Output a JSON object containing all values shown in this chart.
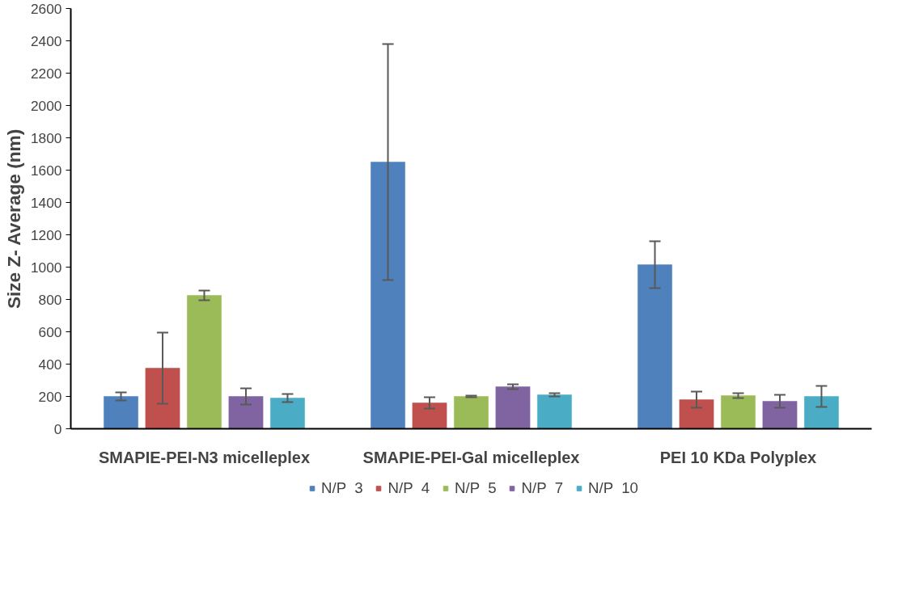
{
  "chart_data": {
    "type": "bar",
    "ylabel": "Size Z- Average (nm)",
    "categories": [
      "SMAPIE-PEI-N3 micelleplex",
      "SMAPIE-PEI-Gal micelleplex",
      "PEI 10 KDa Polyplex"
    ],
    "series": [
      {
        "name": "N/P  3",
        "color": "#4f81bd",
        "values": [
          200,
          1650,
          1015
        ],
        "errors": [
          25,
          730,
          145
        ]
      },
      {
        "name": "N/P  4",
        "color": "#c0504d",
        "values": [
          375,
          160,
          180
        ],
        "errors": [
          220,
          35,
          50
        ]
      },
      {
        "name": "N/P  5",
        "color": "#9bbb59",
        "values": [
          825,
          200,
          205
        ],
        "errors": [
          30,
          5,
          15
        ]
      },
      {
        "name": "N/P  7",
        "color": "#8064a2",
        "values": [
          200,
          260,
          170
        ],
        "errors": [
          50,
          15,
          40
        ]
      },
      {
        "name": "N/P  10",
        "color": "#4bacc6",
        "values": [
          190,
          210,
          200
        ],
        "errors": [
          25,
          10,
          65
        ]
      }
    ],
    "ylim": [
      0,
      2600
    ],
    "yticks": [
      0,
      200,
      400,
      600,
      800,
      1000,
      1200,
      1400,
      1600,
      1800,
      2000,
      2200,
      2400,
      2600
    ],
    "grid": false,
    "legend": "bottom"
  }
}
